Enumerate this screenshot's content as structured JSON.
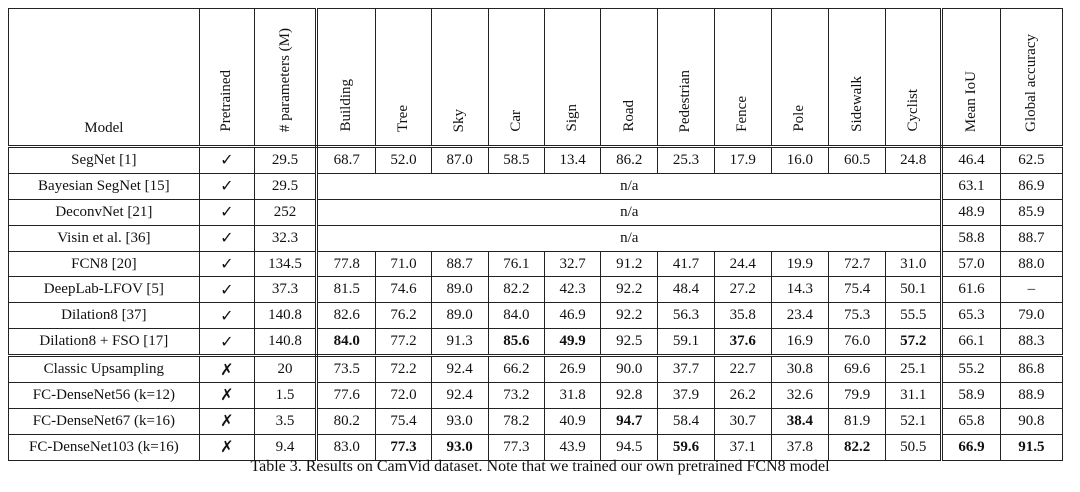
{
  "table": {
    "headers": [
      "Model",
      "Pretrained",
      "# parameters (M)",
      "Building",
      "Tree",
      "Sky",
      "Car",
      "Sign",
      "Road",
      "Pedestrian",
      "Fence",
      "Pole",
      "Sidewalk",
      "Cyclist",
      "Mean IoU",
      "Global accuracy"
    ],
    "rows": [
      {
        "model": "SegNet [1]",
        "pretrained": "✓",
        "params": "29.5",
        "classes": [
          "68.7",
          "52.0",
          "87.0",
          "58.5",
          "13.4",
          "86.2",
          "25.3",
          "17.9",
          "16.0",
          "60.5",
          "24.8"
        ],
        "miou": "46.4",
        "acc": "62.5"
      },
      {
        "model": "Bayesian SegNet [15]",
        "pretrained": "✓",
        "params": "29.5",
        "na": "n/a",
        "miou": "63.1",
        "acc": "86.9"
      },
      {
        "model": "DeconvNet [21]",
        "pretrained": "✓",
        "params": "252",
        "na": "n/a",
        "miou": "48.9",
        "acc": "85.9"
      },
      {
        "model": "Visin et al. [36]",
        "pretrained": "✓",
        "params": "32.3",
        "na": "n/a",
        "miou": "58.8",
        "acc": "88.7"
      },
      {
        "model": "FCN8 [20]",
        "pretrained": "✓",
        "params": "134.5",
        "classes": [
          "77.8",
          "71.0",
          "88.7",
          "76.1",
          "32.7",
          "91.2",
          "41.7",
          "24.4",
          "19.9",
          "72.7",
          "31.0"
        ],
        "miou": "57.0",
        "acc": "88.0"
      },
      {
        "model": "DeepLab-LFOV [5]",
        "pretrained": "✓",
        "params": "37.3",
        "classes": [
          "81.5",
          "74.6",
          "89.0",
          "82.2",
          "42.3",
          "92.2",
          "48.4",
          "27.2",
          "14.3",
          "75.4",
          "50.1"
        ],
        "miou": "61.6",
        "acc": "–"
      },
      {
        "model": "Dilation8 [37]",
        "pretrained": "✓",
        "params": "140.8",
        "classes": [
          "82.6",
          "76.2",
          "89.0",
          "84.0",
          "46.9",
          "92.2",
          "56.3",
          "35.8",
          "23.4",
          "75.3",
          "55.5"
        ],
        "miou": "65.3",
        "acc": "79.0"
      },
      {
        "model": "Dilation8 + FSO [17]",
        "pretrained": "✓",
        "params": "140.8",
        "classes": [
          "84.0",
          "77.2",
          "91.3",
          "85.6",
          "49.9",
          "92.5",
          "59.1",
          "37.6",
          "16.9",
          "76.0",
          "57.2"
        ],
        "miou": "66.1",
        "acc": "88.3"
      },
      {
        "model": "Classic Upsampling",
        "pretrained": "✗",
        "params": "20",
        "classes": [
          "73.5",
          "72.2",
          "92.4",
          "66.2",
          "26.9",
          "90.0",
          "37.7",
          "22.7",
          "30.8",
          "69.6",
          "25.1"
        ],
        "miou": "55.2",
        "acc": "86.8"
      },
      {
        "model": "FC-DenseNet56 (k=12)",
        "pretrained": "✗",
        "params": "1.5",
        "classes": [
          "77.6",
          "72.0",
          "92.4",
          "73.2",
          "31.8",
          "92.8",
          "37.9",
          "26.2",
          "32.6",
          "79.9",
          "31.1"
        ],
        "miou": "58.9",
        "acc": "88.9"
      },
      {
        "model": "FC-DenseNet67 (k=16)",
        "pretrained": "✗",
        "params": "3.5",
        "classes": [
          "80.2",
          "75.4",
          "93.0",
          "78.2",
          "40.9",
          "94.7",
          "58.4",
          "30.7",
          "38.4",
          "81.9",
          "52.1"
        ],
        "miou": "65.8",
        "acc": "90.8"
      },
      {
        "model": "FC-DenseNet103 (k=16)",
        "pretrained": "✗",
        "params": "9.4",
        "classes": [
          "83.0",
          "77.3",
          "93.0",
          "77.3",
          "43.9",
          "94.5",
          "59.6",
          "37.1",
          "37.8",
          "82.2",
          "50.5"
        ],
        "miou": "66.9",
        "acc": "91.5"
      }
    ]
  },
  "caption": "Table 3. Results on CamVid dataset. Note that we trained our own pretrained FCN8 model"
}
